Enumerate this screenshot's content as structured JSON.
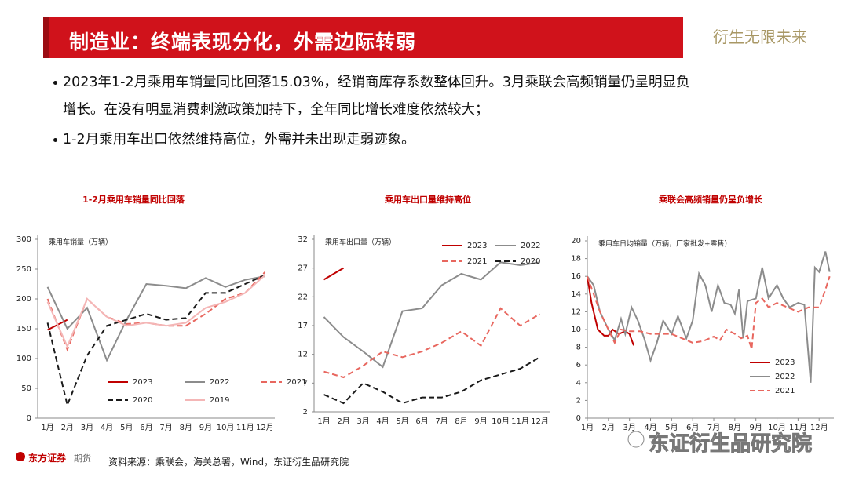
{
  "header": {
    "title": "制造业：终端表现分化，外需边际转弱",
    "brand": "衍生无限未来"
  },
  "bullets": [
    "2023年1-2月乘用车销量同比回落15.03%，经销商库存系数整体回升。3月乘联会高频销量仍呈明显负增长。在没有明显消费刺激政策加持下，全年同比增长难度依然较大；",
    "1-2月乘用车出口依然维持高位，外需并未出现走弱迹象。"
  ],
  "chart_data": [
    {
      "type": "line",
      "title": "1-2月乘用车销量同比回落",
      "ylabel": "乘用车销量（万辆）",
      "categories": [
        "1月",
        "2月",
        "3月",
        "4月",
        "5月",
        "6月",
        "7月",
        "8月",
        "9月",
        "10月",
        "11月",
        "12月"
      ],
      "ylim": [
        0,
        300
      ],
      "yticks": [
        0,
        50,
        100,
        150,
        200,
        250,
        300
      ],
      "legend": "lower right",
      "series": [
        {
          "name": "2023",
          "color": "#c00000",
          "line_style": "solid",
          "values": [
            148,
            165,
            null,
            null,
            null,
            null,
            null,
            null,
            null,
            null,
            null,
            null
          ]
        },
        {
          "name": "2022",
          "color": "#8c8c8c",
          "line_style": "solid",
          "values": [
            220,
            150,
            185,
            97,
            165,
            225,
            222,
            218,
            235,
            220,
            232,
            238
          ]
        },
        {
          "name": "2021",
          "color": "#e8675f",
          "line_style": "dashed",
          "values": [
            200,
            115,
            200,
            170,
            158,
            160,
            155,
            155,
            175,
            200,
            210,
            245
          ]
        },
        {
          "name": "2020",
          "color": "#1a1a1a",
          "line_style": "dashed",
          "values": [
            160,
            22,
            105,
            155,
            165,
            175,
            165,
            168,
            210,
            210,
            225,
            240
          ]
        },
        {
          "name": "2019",
          "color": "#f4b6b6",
          "line_style": "solid",
          "values": [
            195,
            120,
            200,
            170,
            155,
            160,
            155,
            160,
            185,
            195,
            210,
            240
          ]
        }
      ]
    },
    {
      "type": "line",
      "title": "乘用车出口量维持高位",
      "ylabel": "乘用车出口量（万辆）",
      "categories": [
        "1月",
        "2月",
        "3月",
        "4月",
        "5月",
        "6月",
        "7月",
        "8月",
        "9月",
        "10月",
        "11月",
        "12月"
      ],
      "ylim": [
        2,
        32
      ],
      "yticks": [
        2,
        7,
        12,
        17,
        22,
        27,
        32
      ],
      "legend": "upper right",
      "series": [
        {
          "name": "2023",
          "color": "#c00000",
          "line_style": "solid",
          "values": [
            25,
            27,
            null,
            null,
            null,
            null,
            null,
            null,
            null,
            null,
            null,
            null
          ]
        },
        {
          "name": "2022",
          "color": "#8c8c8c",
          "line_style": "solid",
          "values": [
            18.5,
            15,
            12.5,
            9.8,
            19.5,
            20,
            24,
            26,
            25,
            28,
            27.5,
            28
          ]
        },
        {
          "name": "2021",
          "color": "#e8675f",
          "line_style": "dashed",
          "values": [
            9,
            8,
            10,
            12.5,
            11.5,
            12.5,
            14,
            16,
            13.5,
            20,
            17,
            19
          ]
        },
        {
          "name": "2020",
          "color": "#1a1a1a",
          "line_style": "dashed",
          "values": [
            5,
            3.5,
            7,
            5.5,
            3.5,
            4.5,
            4.5,
            5.5,
            7.5,
            8.5,
            9.5,
            11.5
          ]
        }
      ]
    },
    {
      "type": "line",
      "title": "乘联会高频销量仍呈负增长",
      "ylabel": "乘用车日均销量（万辆，厂家批发+零售）",
      "xlim": [
        1,
        12.7
      ],
      "xticks": [
        {
          "value": 1,
          "label": "1月"
        },
        {
          "value": 2,
          "label": "2月"
        },
        {
          "value": 3,
          "label": "3月"
        },
        {
          "value": 4,
          "label": "4月"
        },
        {
          "value": 5,
          "label": "5月"
        },
        {
          "value": 6,
          "label": "6月"
        },
        {
          "value": 7,
          "label": "7月"
        },
        {
          "value": 8,
          "label": "8月"
        },
        {
          "value": 9,
          "label": "9月"
        },
        {
          "value": 10,
          "label": "10月"
        },
        {
          "value": 11,
          "label": "11月"
        },
        {
          "value": 12,
          "label": "12月"
        }
      ],
      "ylim": [
        0,
        20
      ],
      "yticks": [
        0,
        2,
        4,
        6,
        8,
        10,
        12,
        14,
        16,
        18,
        20
      ],
      "legend": "lower left",
      "series": [
        {
          "name": "2023",
          "color": "#c00000",
          "line_style": "solid",
          "x": [
            1,
            1.2,
            1.5,
            1.8,
            2,
            2.2,
            2.5,
            2.8,
            3,
            3.2
          ],
          "values": [
            16,
            13,
            10,
            9.3,
            9.3,
            10,
            9.5,
            9.8,
            9.5,
            8.2
          ]
        },
        {
          "name": "2022",
          "color": "#8c8c8c",
          "line_style": "solid",
          "x": [
            1,
            1.3,
            1.6,
            2,
            2.3,
            2.6,
            2.8,
            3.1,
            3.4,
            3.7,
            4,
            4.3,
            4.6,
            5,
            5.3,
            5.7,
            6,
            6.3,
            6.6,
            6.9,
            7.2,
            7.5,
            7.8,
            8,
            8.2,
            8.4,
            8.6,
            9,
            9.3,
            9.6,
            10,
            10.3,
            10.6,
            11,
            11.3,
            11.6,
            11.8,
            12,
            12.3,
            12.5
          ],
          "values": [
            16,
            15,
            12,
            10,
            8.8,
            11.2,
            9.5,
            12.5,
            11,
            9,
            6.5,
            8.5,
            11,
            9.5,
            11.5,
            9,
            11,
            16.3,
            15,
            12,
            15,
            13,
            12.8,
            11.8,
            14.5,
            9,
            13.2,
            13.5,
            17,
            13.5,
            15,
            13.5,
            12.5,
            13,
            12.8,
            4,
            17,
            16.5,
            18.8,
            16.5
          ]
        },
        {
          "name": "2021",
          "color": "#e8675f",
          "line_style": "dashed",
          "x": [
            1,
            1.3,
            1.6,
            2,
            2.3,
            2.6,
            3,
            3.5,
            4,
            4.5,
            5,
            5.5,
            6,
            6.5,
            7,
            7.3,
            7.6,
            8,
            8.3,
            8.6,
            8.8,
            9,
            9.3,
            9.6,
            10,
            10.5,
            11,
            11.5,
            12,
            12.3,
            12.5
          ],
          "values": [
            16,
            14,
            12,
            10,
            8.5,
            10,
            9.8,
            9.8,
            9.5,
            9.5,
            9.5,
            9,
            8.5,
            8.7,
            9.2,
            8.8,
            10,
            9.5,
            9,
            9.3,
            7.8,
            13,
            13.5,
            12.5,
            13,
            12.5,
            12,
            12.5,
            12.5,
            14.5,
            16
          ]
        }
      ]
    }
  ],
  "source": "资料来源：乘联会，海关总署，Wind，东证衍生品研究院",
  "footer": {
    "logo": "东方证券",
    "logo_sub": "期货",
    "watermark": "东证衍生品研究院"
  }
}
